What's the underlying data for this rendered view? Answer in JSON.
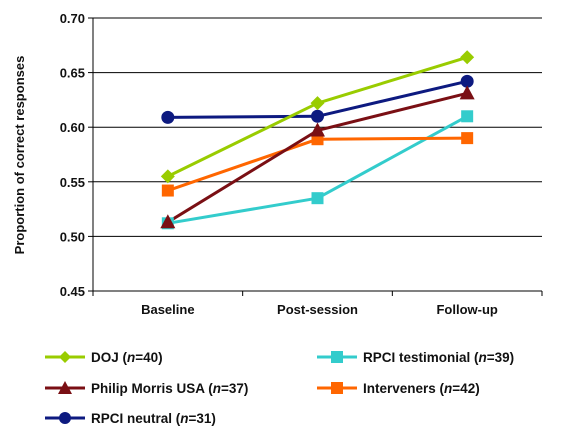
{
  "chart_data": {
    "type": "line",
    "categories": [
      "Baseline",
      "Post-session",
      "Follow-up"
    ],
    "ylabel": "Proportion of correct responses",
    "ylim": [
      0.45,
      0.7
    ],
    "yticks": [
      "0.45",
      "0.50",
      "0.55",
      "0.60",
      "0.65",
      "0.70"
    ],
    "grid": true,
    "legend_position": "bottom",
    "series": [
      {
        "key": "doj",
        "label_main": "DOJ (",
        "label_n": "n",
        "label_rest": "=40)",
        "color": "#99cc00",
        "marker": "diamond",
        "values": [
          0.555,
          0.622,
          0.664
        ]
      },
      {
        "key": "pmusa",
        "label_main": "Philip Morris USA (",
        "label_n": "n",
        "label_rest": "=37)",
        "color": "#7a0f14",
        "marker": "triangle",
        "values": [
          0.513,
          0.597,
          0.631
        ]
      },
      {
        "key": "rpcin",
        "label_main": "RPCI neutral (",
        "label_n": "n",
        "label_rest": "=31)",
        "color": "#0d1a80",
        "marker": "circle",
        "values": [
          0.609,
          0.61,
          0.642
        ]
      },
      {
        "key": "rpcit",
        "label_main": "RPCI testimonial (",
        "label_n": "n",
        "label_rest": "=39)",
        "color": "#33cccc",
        "marker": "square",
        "values": [
          0.512,
          0.535,
          0.61
        ]
      },
      {
        "key": "interv",
        "label_main": "Interveners (",
        "label_n": "n",
        "label_rest": "=42)",
        "color": "#ff6600",
        "marker": "square",
        "values": [
          0.542,
          0.589,
          0.59
        ]
      }
    ]
  }
}
